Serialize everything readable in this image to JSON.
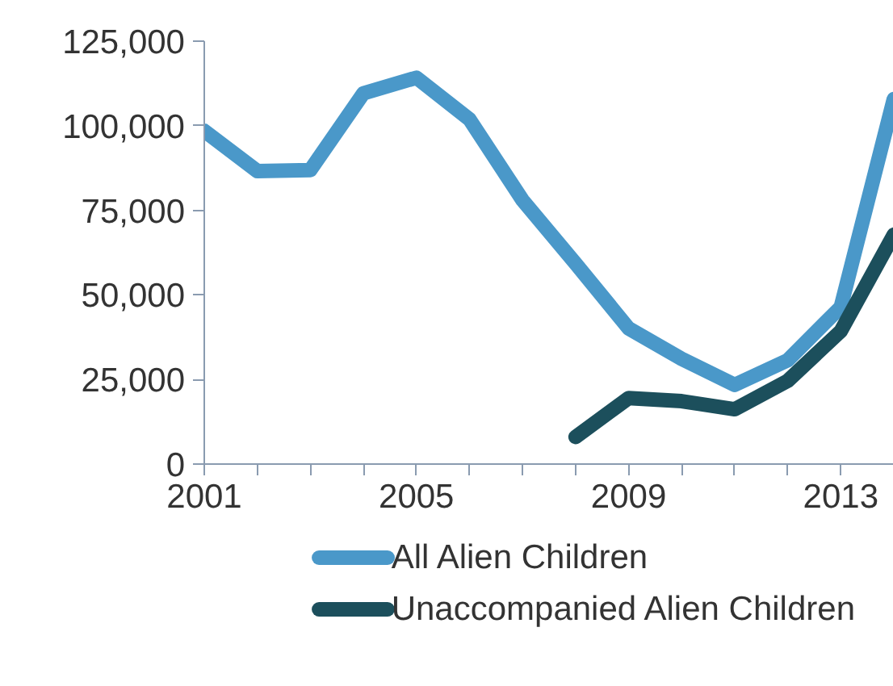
{
  "chart_data": {
    "type": "line",
    "x": [
      2001,
      2002,
      2003,
      2004,
      2005,
      2006,
      2007,
      2008,
      2009,
      2010,
      2011,
      2012,
      2013,
      2014
    ],
    "series": [
      {
        "name": "All Alien Children",
        "color": "#4a98c9",
        "values": [
          98500,
          86600,
          86900,
          109600,
          114200,
          101900,
          78000,
          59300,
          40100,
          31100,
          23400,
          30700,
          46400,
          107900
        ]
      },
      {
        "name": "Unaccompanied Alien Children",
        "color": "#1c4f5c",
        "values": [
          null,
          null,
          null,
          null,
          null,
          null,
          null,
          8000,
          19500,
          18600,
          16200,
          24600,
          39300,
          67800
        ]
      }
    ],
    "xlim": [
      2001,
      2014
    ],
    "xticks": [
      2001,
      {
        "value": 2002,
        "label": null
      },
      {
        "value": 2003,
        "label": null
      },
      {
        "value": 2004,
        "label": null
      },
      2005,
      {
        "value": 2006,
        "label": null
      },
      {
        "value": 2007,
        "label": null
      },
      {
        "value": 2008,
        "label": null
      },
      2009,
      {
        "value": 2010,
        "label": null
      },
      {
        "value": 2011,
        "label": null
      },
      {
        "value": 2012,
        "label": null
      },
      2013,
      {
        "value": 2014,
        "label": null
      }
    ],
    "ylim": [
      0,
      125000
    ],
    "yticks": [
      {
        "value": 0,
        "label": "0"
      },
      {
        "value": 25000,
        "label": "25,000"
      },
      {
        "value": 50000,
        "label": "50,000"
      },
      {
        "value": 75000,
        "label": "75,000"
      },
      {
        "value": 100000,
        "label": "100,000"
      },
      {
        "value": 125000,
        "label": "125,000"
      }
    ],
    "legend": "bottom",
    "grid": false,
    "line_style": "solid"
  }
}
